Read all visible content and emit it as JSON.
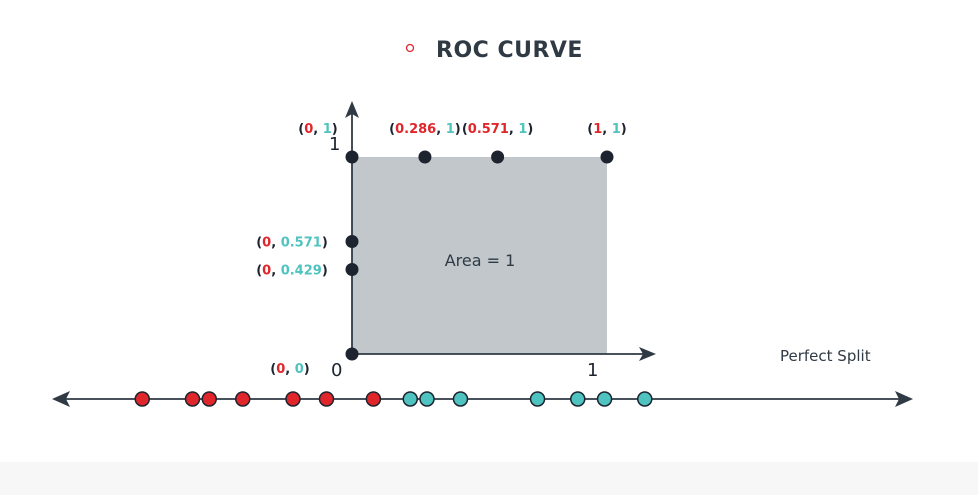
{
  "title": "ROC CURVE",
  "area_label": "Area = 1",
  "split_label": "Perfect Split",
  "axis": {
    "origin_label": "0",
    "x_one_label": "1",
    "y_one_label": "1"
  },
  "colors": {
    "red": "#e0262b",
    "teal": "#4fc3bf",
    "dark": "#1d2430",
    "area_fill": "#c1c7cb",
    "text": "#2f3a44"
  },
  "roc_points": [
    {
      "x": "0",
      "y": "0",
      "x_value": 0,
      "y_value": 0
    },
    {
      "x": "0",
      "y": "0.571",
      "x_value": 0,
      "y_value": 0.571
    },
    {
      "x": "0",
      "y": "0.429",
      "x_value": 0,
      "y_value": 0.429
    },
    {
      "x": "0",
      "y": "1",
      "x_value": 0,
      "y_value": 1
    },
    {
      "x": "0.286",
      "y": "1",
      "x_value": 0.286,
      "y_value": 1
    },
    {
      "x": "0.571",
      "y": "1",
      "x_value": 0.571,
      "y_value": 1
    },
    {
      "x": "1",
      "y": "1",
      "x_value": 1,
      "y_value": 1
    }
  ],
  "number_line": {
    "red_points": [
      -8.5,
      -7.0,
      -6.5,
      -5.5,
      -4.0,
      -3.0,
      -1.6
    ],
    "teal_points": [
      -0.5,
      0.0,
      1.0,
      3.3,
      4.5,
      5.3,
      6.5
    ]
  }
}
